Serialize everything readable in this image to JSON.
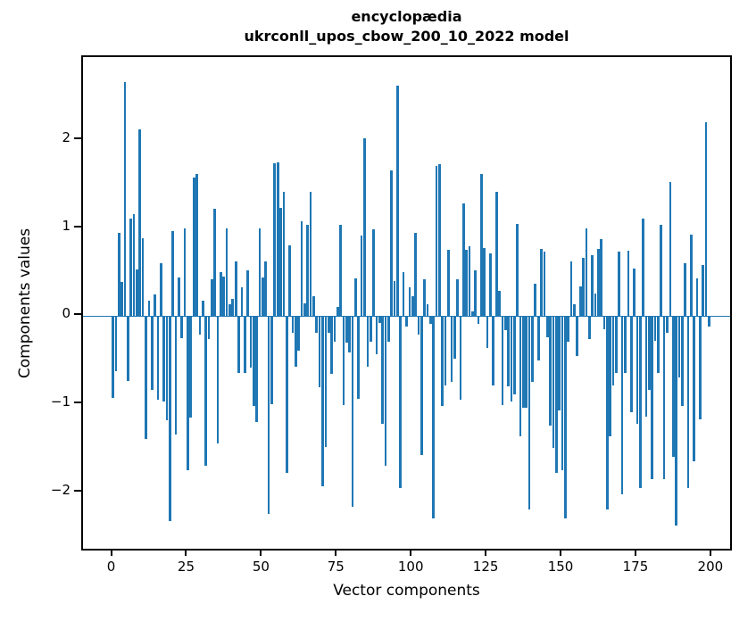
{
  "figure": {
    "title_line1": "encyclopædia",
    "title_line2": "ukrconll_upos_cbow_200_10_2022 model"
  },
  "chart_data": {
    "type": "bar",
    "title": "encyclopædia\nukrconll_upos_cbow_200_10_2022 model",
    "xlabel": "Vector components",
    "ylabel": "Components values",
    "legend": null,
    "grid": false,
    "bar_color": "#1f77b4",
    "n_components": 200,
    "x_ticks": [
      0,
      25,
      50,
      75,
      100,
      125,
      150,
      175,
      200
    ],
    "y_ticks": [
      -2,
      -1,
      0,
      1,
      2
    ],
    "xlim": [
      -10,
      206
    ],
    "ylim": [
      -2.64,
      2.94
    ],
    "values": [
      -0.93,
      -0.62,
      0.94,
      0.39,
      2.66,
      -0.74,
      1.11,
      1.16,
      0.53,
      2.12,
      0.88,
      -1.39,
      0.18,
      -0.84,
      0.25,
      -0.95,
      0.6,
      -0.97,
      -1.18,
      -2.33,
      0.97,
      -1.34,
      0.44,
      -0.25,
      1.0,
      -1.75,
      -1.15,
      1.57,
      1.61,
      -0.21,
      0.18,
      -1.7,
      -0.26,
      0.42,
      1.22,
      -1.45,
      0.5,
      0.45,
      1.0,
      0.13,
      0.2,
      0.62,
      -0.65,
      0.33,
      -0.65,
      0.52,
      -0.58,
      -1.02,
      -1.2,
      1.0,
      0.44,
      0.62,
      -2.25,
      -1.0,
      1.73,
      1.75,
      1.23,
      1.41,
      -1.78,
      0.8,
      -0.19,
      -0.57,
      -0.39,
      1.08,
      0.15,
      1.04,
      1.41,
      0.23,
      -0.19,
      -0.81,
      -1.93,
      -1.49,
      -0.19,
      -0.66,
      -0.29,
      0.1,
      1.04,
      -1.01,
      -0.3,
      -0.41,
      -2.16,
      0.43,
      -0.94,
      0.91,
      2.02,
      -0.57,
      -0.29,
      0.99,
      -0.43,
      -0.08,
      -1.22,
      -1.7,
      -0.29,
      1.65,
      0.4,
      2.62,
      -1.95,
      0.5,
      -0.12,
      0.33,
      0.23,
      0.95,
      -0.21,
      -1.58,
      0.42,
      0.13,
      -0.09,
      -2.3,
      1.7,
      1.72,
      -1.02,
      -0.79,
      0.75,
      -0.75,
      -0.48,
      0.42,
      -0.95,
      1.28,
      0.75,
      0.79,
      0.05,
      0.52,
      -0.09,
      1.61,
      0.77,
      -0.36,
      0.71,
      -0.79,
      1.41,
      0.29,
      -1.01,
      -0.16,
      -0.8,
      -0.97,
      -0.89,
      1.05,
      -1.36,
      -1.04,
      -1.04,
      -2.19,
      -0.75,
      0.37,
      -0.5,
      0.76,
      0.73,
      -0.24,
      -1.24,
      -1.5,
      -1.78,
      -1.07,
      -1.75,
      -2.3,
      -0.29,
      0.62,
      0.13,
      -0.45,
      0.34,
      0.66,
      1.0,
      -0.26,
      0.69,
      0.26,
      0.76,
      0.87,
      -0.15,
      -2.19,
      -1.36,
      -0.79,
      -0.65,
      0.73,
      -2.02,
      -0.65,
      0.74,
      -1.09,
      0.54,
      -1.22,
      -1.95,
      1.11,
      -1.14,
      -0.84,
      -1.85,
      -0.28,
      -0.65,
      1.04,
      -1.85,
      -0.19,
      1.52,
      -1.6,
      -2.38,
      -0.7,
      -1.02,
      0.6,
      -1.95,
      0.92,
      -1.65,
      0.43,
      -1.17,
      0.58,
      2.2,
      -0.12
    ]
  }
}
